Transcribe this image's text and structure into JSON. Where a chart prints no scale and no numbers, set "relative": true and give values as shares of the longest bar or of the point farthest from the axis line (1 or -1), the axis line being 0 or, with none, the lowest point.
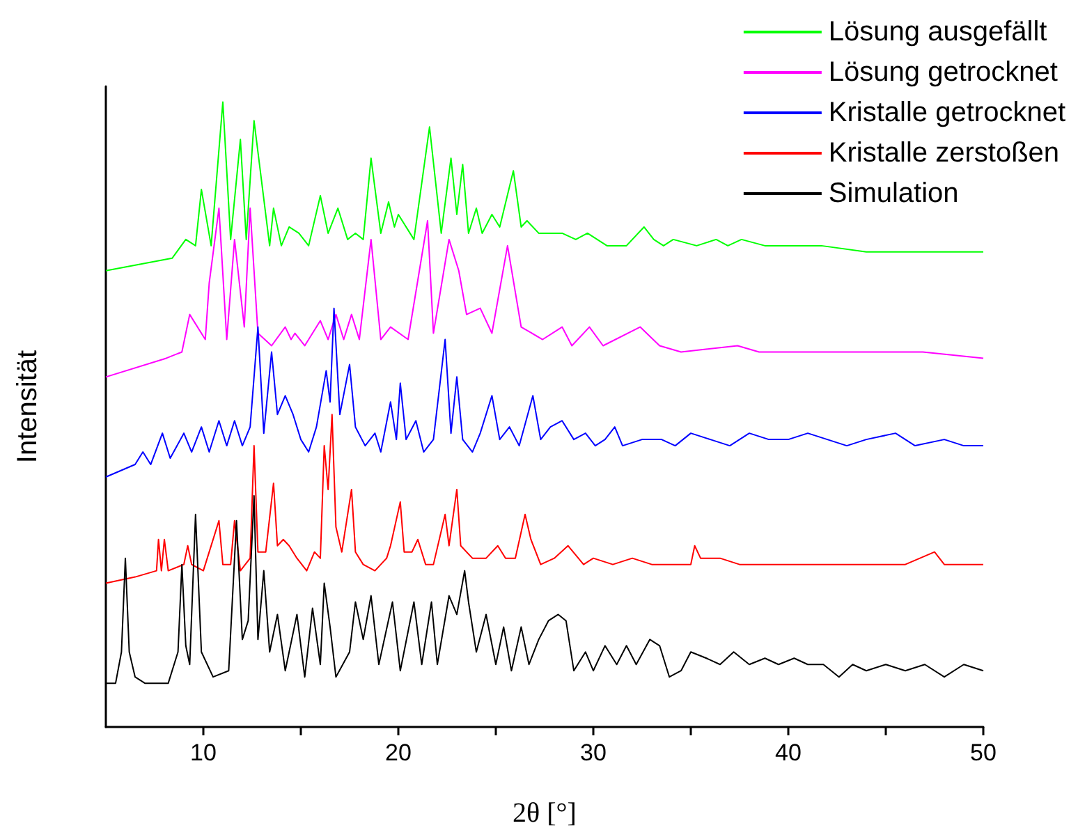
{
  "chart_data": {
    "type": "line",
    "relative": true,
    "xlabel": "2θ [°]",
    "ylabel": "Intensität",
    "legend": "top right",
    "grid": false,
    "xlim": [
      5,
      50
    ],
    "xticks": [
      10,
      {
        "value": 15,
        "label": null
      },
      20,
      {
        "value": 25,
        "label": null
      },
      30,
      {
        "value": 35,
        "label": null
      },
      40,
      {
        "value": 45,
        "label": null
      },
      50
    ],
    "series": [
      {
        "name": "Lösung ausgefällt",
        "color": "#00ff00",
        "x": [
          5,
          8.4,
          9.1,
          9.6,
          9.9,
          10.4,
          11.0,
          11.4,
          11.9,
          12.2,
          12.6,
          13.4,
          13.6,
          14.0,
          14.4,
          14.9,
          15.4,
          16.0,
          16.4,
          16.9,
          17.4,
          17.8,
          18.2,
          18.6,
          19.1,
          19.5,
          19.8,
          20.0,
          20.8,
          21.6,
          22.2,
          22.7,
          23.0,
          23.3,
          23.6,
          24.0,
          24.3,
          24.8,
          25.2,
          25.9,
          26.3,
          26.6,
          27.2,
          28.4,
          29.1,
          29.7,
          30.7,
          31.7,
          32.6,
          33.1,
          33.6,
          34.1,
          35.3,
          36.3,
          36.9,
          37.6,
          38.8,
          41.0,
          41.7,
          44,
          47.6,
          48.3,
          50
        ],
        "values": [
          0.73,
          0.75,
          0.78,
          0.77,
          0.86,
          0.77,
          1.0,
          0.78,
          0.94,
          0.78,
          0.97,
          0.77,
          0.83,
          0.77,
          0.8,
          0.79,
          0.77,
          0.85,
          0.79,
          0.83,
          0.78,
          0.79,
          0.78,
          0.91,
          0.79,
          0.84,
          0.8,
          0.82,
          0.78,
          0.96,
          0.79,
          0.91,
          0.82,
          0.9,
          0.79,
          0.83,
          0.79,
          0.82,
          0.8,
          0.89,
          0.8,
          0.81,
          0.79,
          0.79,
          0.78,
          0.79,
          0.77,
          0.77,
          0.8,
          0.78,
          0.77,
          0.78,
          0.77,
          0.78,
          0.77,
          0.78,
          0.77,
          0.77,
          0.77,
          0.76,
          0.76,
          0.76,
          0.76
        ]
      },
      {
        "name": "Lösung getrocknet",
        "color": "#ff00ff",
        "x": [
          5,
          8.1,
          8.9,
          9.3,
          10.1,
          10.3,
          10.8,
          11.2,
          11.6,
          12.1,
          12.4,
          12.8,
          13.5,
          14.2,
          14.5,
          14.7,
          15.2,
          16.0,
          16.4,
          16.8,
          17.2,
          17.6,
          18.0,
          18.6,
          19.1,
          19.6,
          20.5,
          21.5,
          21.8,
          22.6,
          23.1,
          23.5,
          24.2,
          24.8,
          25.6,
          26.3,
          27.4,
          28.4,
          28.9,
          29.8,
          30.5,
          32.4,
          33.4,
          34.5,
          37.4,
          38.5,
          43.3,
          46.9,
          50
        ],
        "values": [
          0.56,
          0.59,
          0.6,
          0.66,
          0.62,
          0.71,
          0.83,
          0.62,
          0.78,
          0.64,
          0.83,
          0.63,
          0.61,
          0.64,
          0.62,
          0.63,
          0.61,
          0.65,
          0.62,
          0.66,
          0.62,
          0.66,
          0.62,
          0.78,
          0.62,
          0.64,
          0.62,
          0.81,
          0.63,
          0.78,
          0.73,
          0.66,
          0.67,
          0.63,
          0.77,
          0.64,
          0.62,
          0.64,
          0.61,
          0.64,
          0.61,
          0.64,
          0.61,
          0.6,
          0.61,
          0.6,
          0.6,
          0.6,
          0.59
        ]
      },
      {
        "name": "Kristalle getrocknet",
        "color": "#0000ff",
        "x": [
          5,
          6.5,
          6.9,
          7.3,
          7.9,
          8.3,
          9.0,
          9.4,
          9.9,
          10.3,
          10.8,
          11.2,
          11.6,
          12.0,
          12.4,
          12.8,
          13.1,
          13.5,
          13.8,
          14.2,
          14.6,
          15.0,
          15.4,
          15.8,
          16.3,
          16.5,
          16.7,
          17.0,
          17.5,
          17.8,
          18.3,
          18.8,
          19.1,
          19.6,
          19.9,
          20.1,
          20.4,
          20.9,
          21.3,
          21.8,
          22.4,
          22.7,
          23.0,
          23.3,
          23.8,
          24.2,
          24.8,
          25.2,
          25.7,
          26.2,
          26.9,
          27.3,
          27.8,
          28.4,
          29.0,
          29.6,
          30.1,
          30.6,
          31.1,
          31.5,
          32.5,
          33.5,
          34.2,
          35.0,
          36,
          37,
          38,
          39,
          40,
          41,
          42,
          43,
          44,
          45.5,
          46.5,
          48,
          49,
          50
        ],
        "values": [
          0.4,
          0.42,
          0.44,
          0.42,
          0.47,
          0.43,
          0.47,
          0.44,
          0.48,
          0.44,
          0.49,
          0.45,
          0.49,
          0.45,
          0.48,
          0.64,
          0.47,
          0.6,
          0.5,
          0.53,
          0.5,
          0.46,
          0.44,
          0.48,
          0.57,
          0.52,
          0.67,
          0.5,
          0.58,
          0.48,
          0.45,
          0.47,
          0.44,
          0.52,
          0.46,
          0.55,
          0.46,
          0.49,
          0.44,
          0.46,
          0.62,
          0.47,
          0.56,
          0.46,
          0.44,
          0.47,
          0.53,
          0.46,
          0.48,
          0.45,
          0.53,
          0.46,
          0.48,
          0.49,
          0.46,
          0.47,
          0.45,
          0.46,
          0.48,
          0.45,
          0.46,
          0.46,
          0.45,
          0.47,
          0.46,
          0.45,
          0.47,
          0.46,
          0.46,
          0.47,
          0.46,
          0.45,
          0.46,
          0.47,
          0.45,
          0.46,
          0.45,
          0.45
        ]
      },
      {
        "name": "Kristalle zerstoßen",
        "color": "#ff0000",
        "x": [
          5,
          6.5,
          7.6,
          7.7,
          7.85,
          8.0,
          8.2,
          9.0,
          9.2,
          9.4,
          10.0,
          10.8,
          11.0,
          11.4,
          11.6,
          11.9,
          12.4,
          12.6,
          12.8,
          13.2,
          13.6,
          13.8,
          14.1,
          14.4,
          14.8,
          15.3,
          15.7,
          16.0,
          16.2,
          16.4,
          16.6,
          16.8,
          17.1,
          17.6,
          17.8,
          18.2,
          18.8,
          19.4,
          19.6,
          20.1,
          20.3,
          20.7,
          21.0,
          21.4,
          21.8,
          22.4,
          22.6,
          23.0,
          23.2,
          23.8,
          24.5,
          25.1,
          25.5,
          26.0,
          26.5,
          26.8,
          27.3,
          28.0,
          28.7,
          29.5,
          30,
          31,
          32,
          33,
          34,
          35.0,
          35.2,
          35.5,
          36.5,
          37.5,
          38.5,
          40,
          42,
          44,
          46,
          47.5,
          48,
          50
        ],
        "values": [
          0.23,
          0.24,
          0.25,
          0.3,
          0.25,
          0.3,
          0.25,
          0.26,
          0.29,
          0.26,
          0.25,
          0.33,
          0.26,
          0.26,
          0.33,
          0.25,
          0.27,
          0.45,
          0.28,
          0.28,
          0.39,
          0.29,
          0.3,
          0.29,
          0.27,
          0.25,
          0.28,
          0.27,
          0.45,
          0.38,
          0.5,
          0.32,
          0.28,
          0.38,
          0.28,
          0.26,
          0.25,
          0.27,
          0.29,
          0.36,
          0.28,
          0.28,
          0.3,
          0.26,
          0.26,
          0.34,
          0.29,
          0.38,
          0.29,
          0.27,
          0.27,
          0.29,
          0.27,
          0.27,
          0.34,
          0.3,
          0.26,
          0.27,
          0.29,
          0.26,
          0.27,
          0.26,
          0.27,
          0.26,
          0.26,
          0.26,
          0.29,
          0.27,
          0.27,
          0.26,
          0.26,
          0.26,
          0.26,
          0.26,
          0.26,
          0.28,
          0.26,
          0.26
        ]
      },
      {
        "name": "Simulation",
        "color": "#000000",
        "x": [
          5,
          5.5,
          5.8,
          6.0,
          6.2,
          6.5,
          7,
          8.2,
          8.7,
          8.9,
          9.1,
          9.3,
          9.6,
          9.9,
          10.5,
          11.3,
          11.7,
          12.0,
          12.3,
          12.6,
          12.8,
          13.1,
          13.4,
          13.8,
          14.2,
          14.8,
          15.2,
          15.6,
          16.0,
          16.2,
          16.5,
          16.8,
          17.5,
          17.8,
          18.2,
          18.6,
          19.0,
          19.7,
          20.1,
          20.8,
          21.2,
          21.7,
          22.0,
          22.6,
          23.0,
          23.4,
          23.6,
          24.0,
          24.5,
          25.0,
          25.4,
          25.8,
          26.3,
          26.7,
          27.2,
          27.7,
          28.2,
          28.6,
          29.0,
          29.6,
          30.0,
          30.6,
          31.2,
          31.7,
          32.2,
          32.9,
          33.4,
          33.9,
          34.5,
          35.0,
          35.8,
          36.5,
          37.2,
          38,
          38.8,
          39.5,
          40.3,
          41,
          41.8,
          42.6,
          43.3,
          44,
          45,
          46,
          47,
          48,
          49,
          50
        ],
        "values": [
          0.07,
          0.07,
          0.12,
          0.27,
          0.12,
          0.08,
          0.07,
          0.07,
          0.12,
          0.26,
          0.13,
          0.1,
          0.34,
          0.12,
          0.08,
          0.09,
          0.33,
          0.14,
          0.17,
          0.37,
          0.14,
          0.25,
          0.12,
          0.18,
          0.09,
          0.18,
          0.08,
          0.19,
          0.1,
          0.23,
          0.16,
          0.08,
          0.12,
          0.2,
          0.14,
          0.21,
          0.1,
          0.2,
          0.09,
          0.2,
          0.1,
          0.2,
          0.1,
          0.21,
          0.18,
          0.25,
          0.2,
          0.12,
          0.18,
          0.1,
          0.16,
          0.09,
          0.16,
          0.1,
          0.14,
          0.17,
          0.18,
          0.17,
          0.09,
          0.12,
          0.09,
          0.13,
          0.1,
          0.13,
          0.1,
          0.14,
          0.13,
          0.08,
          0.09,
          0.12,
          0.11,
          0.1,
          0.12,
          0.1,
          0.11,
          0.1,
          0.11,
          0.1,
          0.1,
          0.08,
          0.1,
          0.09,
          0.1,
          0.09,
          0.1,
          0.08,
          0.1,
          0.09
        ]
      }
    ]
  }
}
